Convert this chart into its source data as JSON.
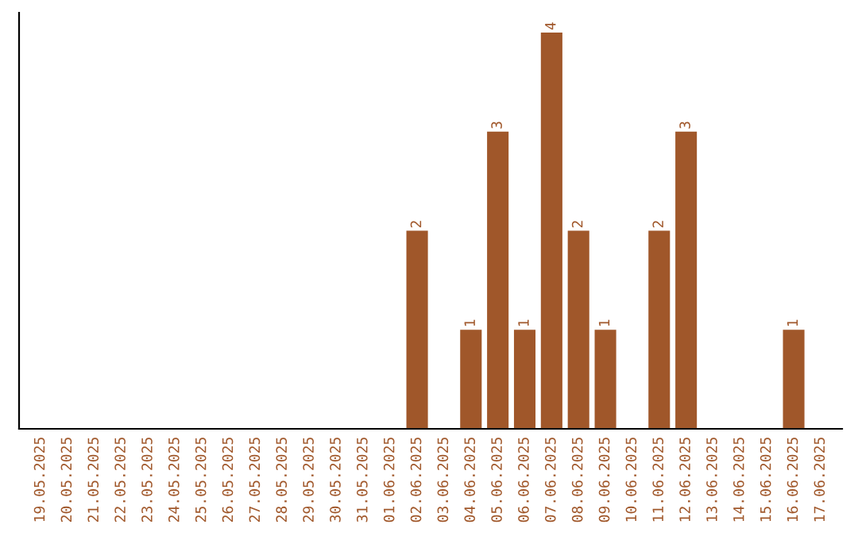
{
  "chart_data": {
    "type": "bar",
    "categories": [
      "19.05.2025",
      "20.05.2025",
      "21.05.2025",
      "22.05.2025",
      "23.05.2025",
      "24.05.2025",
      "25.05.2025",
      "26.05.2025",
      "27.05.2025",
      "28.05.2025",
      "29.05.2025",
      "30.05.2025",
      "31.05.2025",
      "01.06.2025",
      "02.06.2025",
      "03.06.2025",
      "04.06.2025",
      "05.06.2025",
      "06.06.2025",
      "07.06.2025",
      "08.06.2025",
      "09.06.2025",
      "10.06.2025",
      "11.06.2025",
      "12.06.2025",
      "13.06.2025",
      "14.06.2025",
      "15.06.2025",
      "16.06.2025",
      "17.06.2025"
    ],
    "values": [
      null,
      null,
      null,
      null,
      null,
      null,
      null,
      null,
      null,
      null,
      null,
      null,
      null,
      null,
      2,
      null,
      1,
      3,
      1,
      4,
      2,
      1,
      null,
      2,
      3,
      null,
      null,
      null,
      1,
      null
    ],
    "ylim": [
      0,
      4.2
    ],
    "value_labels": [
      null,
      null,
      null,
      null,
      null,
      null,
      null,
      null,
      null,
      null,
      null,
      null,
      null,
      null,
      "2",
      null,
      "1",
      "3",
      "1",
      "4",
      "2",
      "1",
      null,
      "2",
      "3",
      null,
      null,
      null,
      "1",
      null
    ],
    "color": "#a0572a",
    "tick_labels": "x",
    "grid": false,
    "legend": false
  }
}
